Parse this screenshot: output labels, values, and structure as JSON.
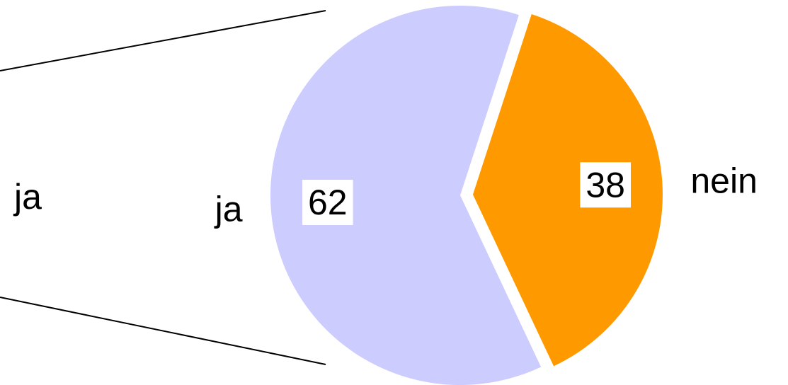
{
  "chart_data": {
    "type": "pie",
    "categories": [
      "ja",
      "nein"
    ],
    "values": [
      62,
      38
    ],
    "colors": [
      "#ccccff",
      "#ff9900"
    ]
  }
}
